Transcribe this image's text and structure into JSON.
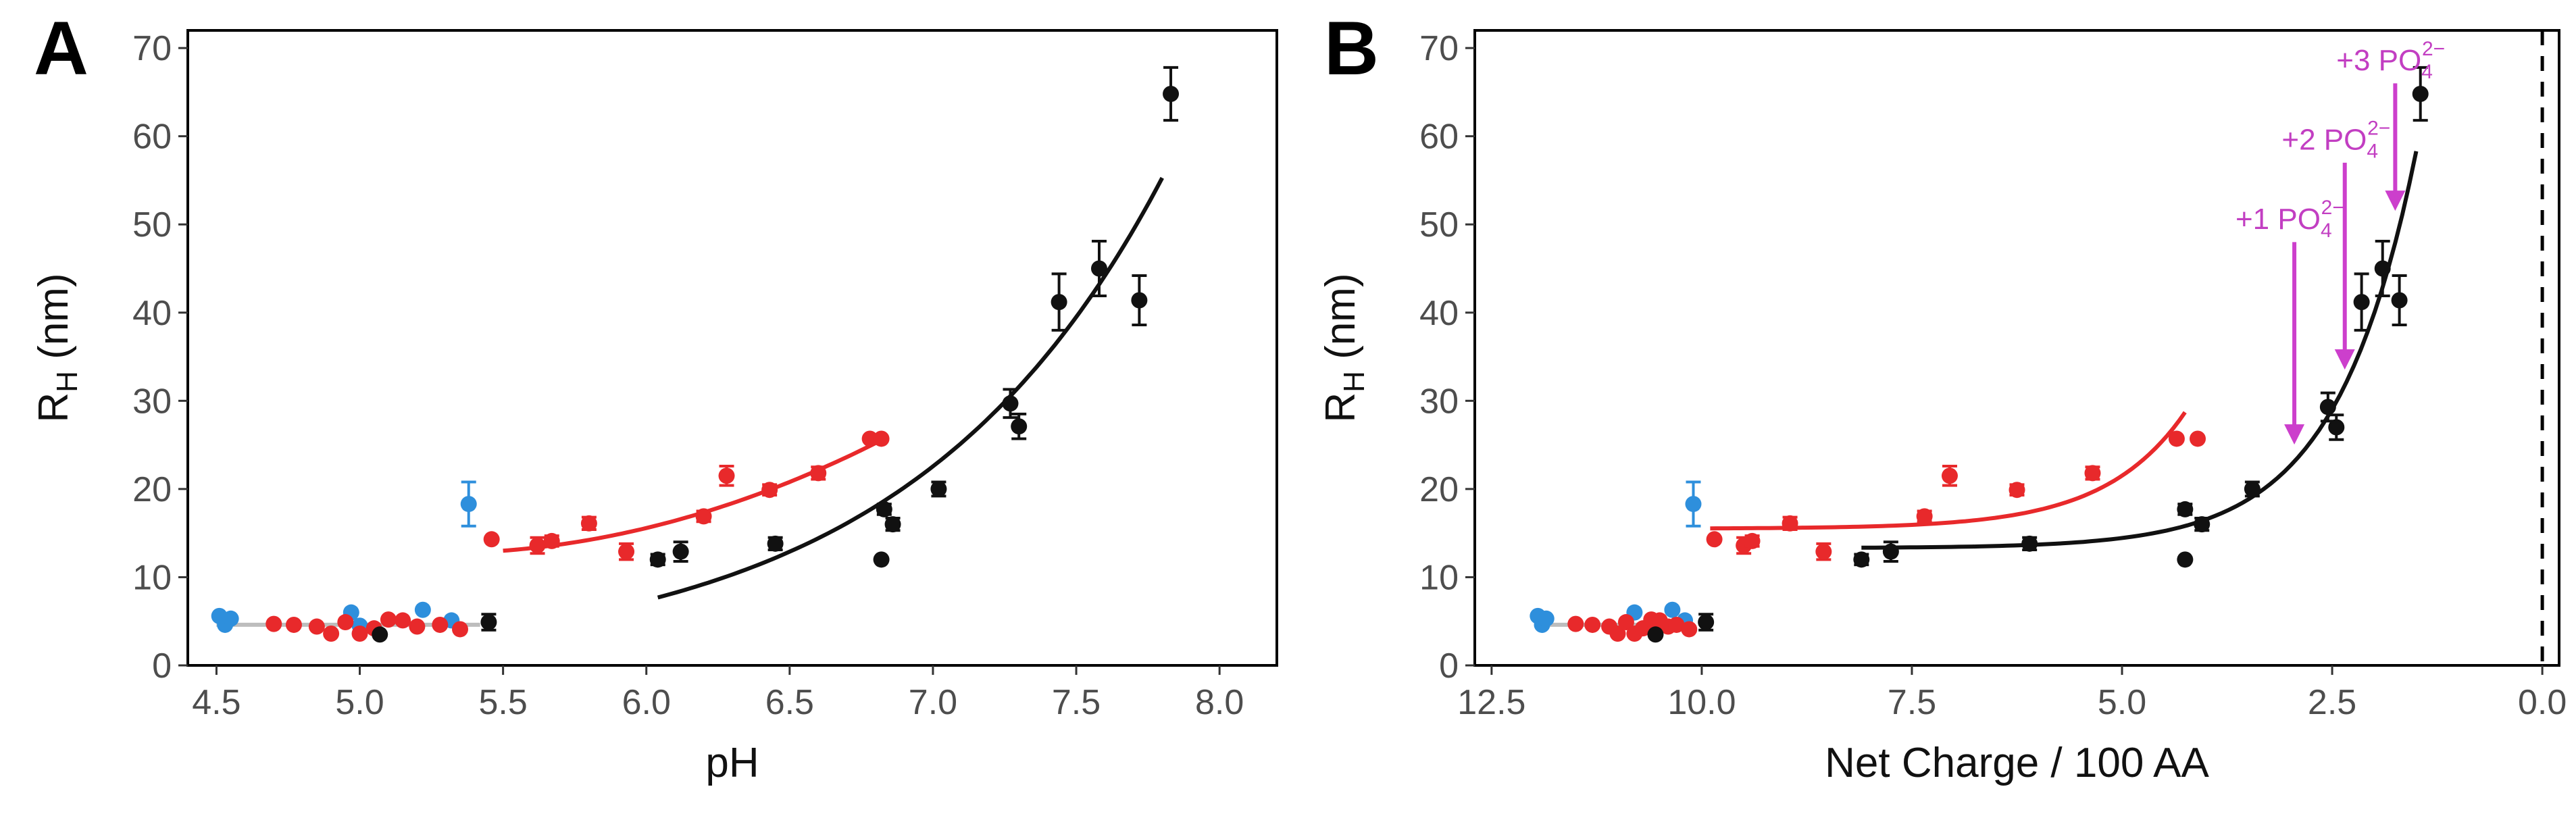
{
  "colors": {
    "red": "#e8292b",
    "black": "#111111",
    "blue": "#2e8fdc",
    "grey": "#bdbdbd",
    "magenta": "#cc3fcc"
  },
  "chart_data": [
    {
      "panel": "A",
      "type": "scatter",
      "xlabel": "pH",
      "ylabel": "R_H (nm)",
      "ylabel_main": "R",
      "ylabel_sub": "H",
      "ylabel_rest": " (nm)",
      "xlim": [
        4.4,
        8.2
      ],
      "ylim": [
        0,
        72
      ],
      "xticks": [
        4.5,
        5.0,
        5.5,
        6.0,
        6.5,
        7.0,
        7.5,
        8.0
      ],
      "xtick_labels": [
        "4.5",
        "5.0",
        "5.5",
        "6.0",
        "6.5",
        "7.0",
        "7.5",
        "8.0"
      ],
      "yticks": [
        0,
        10,
        20,
        30,
        40,
        50,
        60,
        70
      ],
      "ytick_labels": [
        "0",
        "10",
        "20",
        "30",
        "40",
        "50",
        "60",
        "70"
      ],
      "series": [
        {
          "name": "blue",
          "color": "blue",
          "points": [
            {
              "x": 4.51,
              "y": 5.6,
              "err": 0.4
            },
            {
              "x": 4.53,
              "y": 4.6,
              "err": 0.4
            },
            {
              "x": 4.55,
              "y": 5.3,
              "err": 0.4
            },
            {
              "x": 4.97,
              "y": 6.0,
              "err": 0.4
            },
            {
              "x": 5.0,
              "y": 4.5,
              "err": 0.4
            },
            {
              "x": 5.22,
              "y": 6.3,
              "err": 0.4
            },
            {
              "x": 5.32,
              "y": 5.1,
              "err": 0.4
            },
            {
              "x": 5.38,
              "y": 18.3,
              "err": 2.5
            }
          ]
        },
        {
          "name": "red",
          "color": "red",
          "points": [
            {
              "x": 4.7,
              "y": 4.7,
              "err": 0.3
            },
            {
              "x": 4.77,
              "y": 4.6,
              "err": 0.3
            },
            {
              "x": 4.85,
              "y": 4.4,
              "err": 0.3
            },
            {
              "x": 4.9,
              "y": 3.6,
              "err": 0.3
            },
            {
              "x": 4.95,
              "y": 4.9,
              "err": 0.3
            },
            {
              "x": 5.0,
              "y": 3.6,
              "err": 0.3
            },
            {
              "x": 5.05,
              "y": 4.2,
              "err": 0.3
            },
            {
              "x": 5.1,
              "y": 5.2,
              "err": 0.3
            },
            {
              "x": 5.15,
              "y": 5.1,
              "err": 0.3
            },
            {
              "x": 5.2,
              "y": 4.4,
              "err": 0.3
            },
            {
              "x": 5.28,
              "y": 4.6,
              "err": 0.3
            },
            {
              "x": 5.35,
              "y": 4.1,
              "err": 0.3
            },
            {
              "x": 5.46,
              "y": 14.3,
              "err": 0.5
            },
            {
              "x": 5.62,
              "y": 13.6,
              "err": 0.9
            },
            {
              "x": 5.67,
              "y": 14.1,
              "err": 0.6
            },
            {
              "x": 5.8,
              "y": 16.1,
              "err": 0.7
            },
            {
              "x": 5.93,
              "y": 12.9,
              "err": 0.9
            },
            {
              "x": 6.2,
              "y": 16.9,
              "err": 0.6
            },
            {
              "x": 6.28,
              "y": 21.5,
              "err": 1.1
            },
            {
              "x": 6.43,
              "y": 19.9,
              "err": 0.6
            },
            {
              "x": 6.6,
              "y": 21.8,
              "err": 0.7
            },
            {
              "x": 6.78,
              "y": 25.7,
              "err": 0.4
            },
            {
              "x": 6.82,
              "y": 25.7,
              "err": 0.4
            }
          ]
        },
        {
          "name": "black",
          "color": "black",
          "points": [
            {
              "x": 5.07,
              "y": 3.5,
              "err": 0.3
            },
            {
              "x": 5.45,
              "y": 4.9,
              "err": 0.9
            },
            {
              "x": 6.04,
              "y": 12.0,
              "err": 0.6
            },
            {
              "x": 6.12,
              "y": 12.9,
              "err": 1.1
            },
            {
              "x": 6.45,
              "y": 13.8,
              "err": 0.7
            },
            {
              "x": 6.82,
              "y": 12.0,
              "err": 0.4
            },
            {
              "x": 6.83,
              "y": 17.7,
              "err": 0.6
            },
            {
              "x": 6.86,
              "y": 16.0,
              "err": 0.7
            },
            {
              "x": 7.02,
              "y": 20.0,
              "err": 0.8
            },
            {
              "x": 7.27,
              "y": 29.7,
              "err": 1.6
            },
            {
              "x": 7.3,
              "y": 27.1,
              "err": 1.4
            },
            {
              "x": 7.44,
              "y": 41.2,
              "err": 3.2
            },
            {
              "x": 7.58,
              "y": 45.0,
              "err": 3.1
            },
            {
              "x": 7.72,
              "y": 41.4,
              "err": 2.8
            },
            {
              "x": 7.83,
              "y": 64.8,
              "err": 3.0
            }
          ]
        }
      ],
      "fits": [
        {
          "name": "grey fit",
          "color": "grey",
          "type": "linear",
          "x_range": [
            4.5,
            5.42
          ],
          "a": 4.6,
          "b": 0.0
        },
        {
          "name": "red fit",
          "color": "red",
          "type": "quadratic",
          "x_range": [
            5.5,
            6.83
          ],
          "a": 13.0,
          "b": 2.5,
          "c": 5.3
        },
        {
          "name": "black fit",
          "color": "black",
          "type": "exponential",
          "x_range": [
            6.04,
            7.8
          ],
          "a": 7.7,
          "b": 1.12
        }
      ]
    },
    {
      "panel": "B",
      "type": "scatter",
      "xlabel": "Net Charge / 100 AA",
      "ylabel": "R_H (nm)",
      "ylabel_main": "R",
      "ylabel_sub": "H",
      "ylabel_rest": " (nm)",
      "x_reversed": true,
      "xlim": [
        12.7,
        -0.2
      ],
      "ylim": [
        0,
        72
      ],
      "xticks": [
        12.5,
        10.0,
        7.5,
        5.0,
        2.5,
        0.0
      ],
      "xtick_labels": [
        "12.5",
        "10.0",
        "7.5",
        "5.0",
        "2.5",
        "0.0"
      ],
      "yticks": [
        0,
        10,
        20,
        30,
        40,
        50,
        60,
        70
      ],
      "ytick_labels": [
        "0",
        "10",
        "20",
        "30",
        "40",
        "50",
        "60",
        "70"
      ],
      "vline": 0.0,
      "series": [
        {
          "name": "blue",
          "color": "blue",
          "points": [
            {
              "x": 11.95,
              "y": 5.6,
              "err": 0.4
            },
            {
              "x": 11.9,
              "y": 4.6,
              "err": 0.4
            },
            {
              "x": 11.85,
              "y": 5.3,
              "err": 0.4
            },
            {
              "x": 10.8,
              "y": 6.0,
              "err": 0.4
            },
            {
              "x": 10.6,
              "y": 4.5,
              "err": 0.4
            },
            {
              "x": 10.35,
              "y": 6.3,
              "err": 0.4
            },
            {
              "x": 10.2,
              "y": 5.1,
              "err": 0.4
            },
            {
              "x": 10.1,
              "y": 18.3,
              "err": 2.5
            }
          ]
        },
        {
          "name": "red",
          "color": "red",
          "points": [
            {
              "x": 11.5,
              "y": 4.7,
              "err": 0.3
            },
            {
              "x": 11.3,
              "y": 4.6,
              "err": 0.3
            },
            {
              "x": 11.1,
              "y": 4.4,
              "err": 0.3
            },
            {
              "x": 11.0,
              "y": 3.6,
              "err": 0.3
            },
            {
              "x": 10.9,
              "y": 4.9,
              "err": 0.3
            },
            {
              "x": 10.8,
              "y": 3.6,
              "err": 0.3
            },
            {
              "x": 10.7,
              "y": 4.2,
              "err": 0.3
            },
            {
              "x": 10.6,
              "y": 5.2,
              "err": 0.3
            },
            {
              "x": 10.5,
              "y": 5.1,
              "err": 0.3
            },
            {
              "x": 10.4,
              "y": 4.4,
              "err": 0.3
            },
            {
              "x": 10.3,
              "y": 4.6,
              "err": 0.3
            },
            {
              "x": 10.15,
              "y": 4.1,
              "err": 0.3
            },
            {
              "x": 9.85,
              "y": 14.3,
              "err": 0.5
            },
            {
              "x": 9.5,
              "y": 13.6,
              "err": 0.9
            },
            {
              "x": 9.4,
              "y": 14.1,
              "err": 0.6
            },
            {
              "x": 8.95,
              "y": 16.1,
              "err": 0.7
            },
            {
              "x": 8.55,
              "y": 12.9,
              "err": 0.9
            },
            {
              "x": 7.35,
              "y": 16.9,
              "err": 0.6
            },
            {
              "x": 7.05,
              "y": 21.5,
              "err": 1.1
            },
            {
              "x": 6.25,
              "y": 19.9,
              "err": 0.6
            },
            {
              "x": 5.35,
              "y": 21.8,
              "err": 0.7
            },
            {
              "x": 4.35,
              "y": 25.7,
              "err": 0.4
            },
            {
              "x": 4.1,
              "y": 25.7,
              "err": 0.4
            }
          ]
        },
        {
          "name": "black",
          "color": "black",
          "points": [
            {
              "x": 10.55,
              "y": 3.5,
              "err": 0.3
            },
            {
              "x": 9.95,
              "y": 4.9,
              "err": 0.9
            },
            {
              "x": 8.1,
              "y": 12.0,
              "err": 0.6
            },
            {
              "x": 7.75,
              "y": 12.9,
              "err": 1.1
            },
            {
              "x": 6.1,
              "y": 13.8,
              "err": 0.7
            },
            {
              "x": 4.25,
              "y": 12.0,
              "err": 0.4
            },
            {
              "x": 4.25,
              "y": 17.7,
              "err": 0.6
            },
            {
              "x": 4.05,
              "y": 16.0,
              "err": 0.7
            },
            {
              "x": 3.45,
              "y": 20.0,
              "err": 0.8
            },
            {
              "x": 2.55,
              "y": 29.3,
              "err": 1.6
            },
            {
              "x": 2.45,
              "y": 27.0,
              "err": 1.4
            },
            {
              "x": 2.15,
              "y": 41.2,
              "err": 3.2
            },
            {
              "x": 1.9,
              "y": 45.0,
              "err": 3.1
            },
            {
              "x": 1.7,
              "y": 41.4,
              "err": 2.8
            },
            {
              "x": 1.45,
              "y": 64.8,
              "err": 3.0
            }
          ]
        }
      ],
      "fits": [
        {
          "name": "grey fit",
          "color": "grey",
          "type": "linear",
          "x_range": [
            11.95,
            10.2
          ],
          "a": 4.6,
          "b": 0.0
        },
        {
          "name": "red fit",
          "color": "red",
          "type": "offset_exponential",
          "x_range": [
            9.9,
            4.25
          ],
          "y0": 15.5,
          "A": 13.2,
          "k": 1.05,
          "x0": 4.25
        },
        {
          "name": "black fit",
          "color": "black",
          "type": "offset_exponential",
          "x_range": [
            8.1,
            1.5
          ],
          "y0": 13.3,
          "A": 45.0,
          "k": 1.05,
          "x0": 1.5
        }
      ],
      "annotations": [
        {
          "text": "+3 PO",
          "sub": "4",
          "sup": "2−",
          "arrow_x": 1.75,
          "arrow_from_y": 66.0,
          "arrow_to_y": 52.0,
          "label_x": 2.45,
          "label_y": 67.5
        },
        {
          "text": "+2 PO",
          "sub": "4",
          "sup": "2−",
          "arrow_x": 2.35,
          "arrow_from_y": 57.0,
          "arrow_to_y": 34.0,
          "label_x": 3.1,
          "label_y": 58.5
        },
        {
          "text": "+1 PO",
          "sub": "4",
          "sup": "2−",
          "arrow_x": 2.95,
          "arrow_from_y": 48.0,
          "arrow_to_y": 25.5,
          "label_x": 3.65,
          "label_y": 49.5
        }
      ]
    }
  ]
}
